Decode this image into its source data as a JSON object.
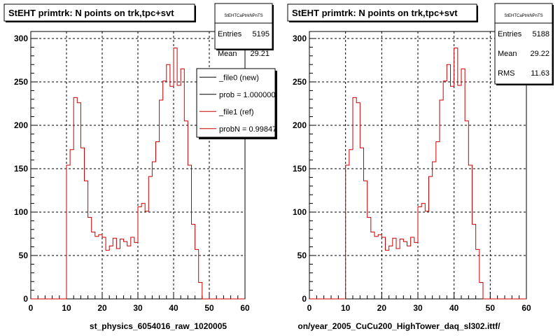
{
  "chart_data": [
    {
      "type": "line",
      "title": "StEHT primtrk: N points on trk,tpc+svt",
      "xlabel": "st_physics_6054016_raw_1020005",
      "xlim": [
        0,
        60
      ],
      "ylim": [
        0,
        300
      ],
      "xticks": [
        "0",
        "10",
        "20",
        "30",
        "40",
        "50",
        "60"
      ],
      "yticks": [
        "0",
        "50",
        "100",
        "150",
        "200",
        "250",
        "300"
      ],
      "grid": true,
      "stats": {
        "name": "StEHTCaPtrkNPnTS",
        "rows": [
          {
            "label": "Entries",
            "value": "5195"
          },
          {
            "label": "Mean",
            "value": "29.21"
          }
        ]
      },
      "legend": [
        {
          "label": "_file0 (new)",
          "color": "#000000"
        },
        {
          "label": "prob = 1.000000",
          "color": "#000000"
        },
        {
          "label": "_file1 (ref)",
          "color": "#cc0000"
        },
        {
          "label": "probN = 0.99847",
          "color": "#cc0000"
        }
      ],
      "series": [
        {
          "x": [
            9,
            10,
            11,
            12,
            13,
            14,
            15,
            16,
            17,
            18,
            19,
            20,
            21,
            22,
            23,
            24,
            25,
            26,
            27,
            28,
            29,
            30,
            31,
            32,
            33,
            34,
            35,
            36,
            37,
            38,
            39,
            40,
            41,
            42,
            43,
            44,
            45,
            46,
            47
          ],
          "values": [
            0,
            154,
            172,
            232,
            226,
            174,
            136,
            94,
            77,
            72,
            74,
            71,
            56,
            61,
            70,
            58,
            69,
            66,
            61,
            71,
            65,
            106,
            110,
            101,
            141,
            158,
            181,
            229,
            251,
            270,
            245,
            289,
            246,
            265,
            205,
            154,
            86,
            57,
            19
          ]
        }
      ]
    },
    {
      "type": "line",
      "title": "StEHT primtrk: N points on trk,tpc+svt",
      "xlabel": "on/year_2005_CuCu200_HighTower_daq_sl302.ittf/",
      "xlim": [
        0,
        60
      ],
      "ylim": [
        0,
        300
      ],
      "xticks": [
        "0",
        "10",
        "20",
        "30",
        "40",
        "50",
        "60"
      ],
      "yticks": [
        "0",
        "50",
        "100",
        "150",
        "200",
        "250",
        "300"
      ],
      "grid": true,
      "stats": {
        "name": "StEHTCaPtrkNPnTS",
        "rows": [
          {
            "label": "Entries",
            "value": "5188"
          },
          {
            "label": "Mean",
            "value": "29.22"
          },
          {
            "label": "RMS",
            "value": "11.63"
          }
        ]
      },
      "series": [
        {
          "x": [
            9,
            10,
            11,
            12,
            13,
            14,
            15,
            16,
            17,
            18,
            19,
            20,
            21,
            22,
            23,
            24,
            25,
            26,
            27,
            28,
            29,
            30,
            31,
            32,
            33,
            34,
            35,
            36,
            37,
            38,
            39,
            40,
            41,
            42,
            43,
            44,
            45,
            46,
            47
          ],
          "values": [
            0,
            154,
            172,
            232,
            226,
            174,
            136,
            94,
            77,
            72,
            74,
            71,
            56,
            61,
            70,
            58,
            69,
            66,
            61,
            71,
            65,
            106,
            110,
            101,
            141,
            158,
            181,
            229,
            251,
            270,
            245,
            289,
            246,
            265,
            205,
            154,
            86,
            57,
            19
          ]
        }
      ]
    }
  ]
}
